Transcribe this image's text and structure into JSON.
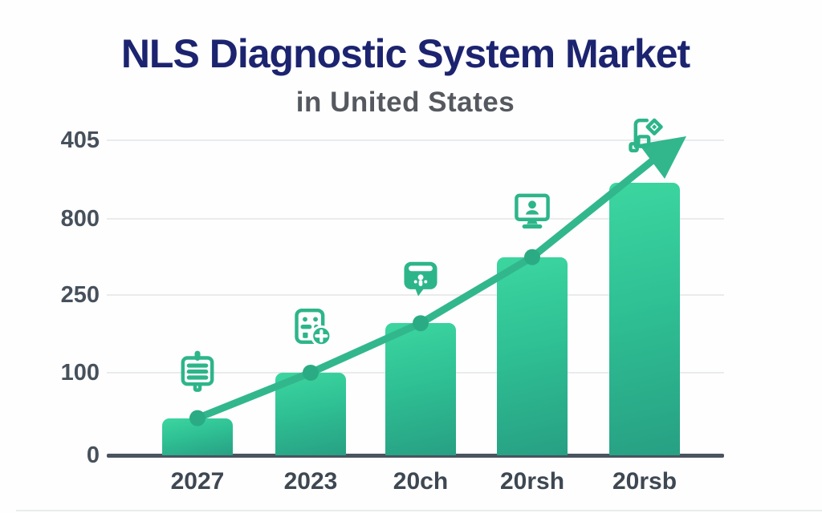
{
  "chart_data": {
    "type": "bar",
    "title": "NLS Diagnostic System Market",
    "subtitle": "in United States",
    "categories": [
      "2027",
      "2023",
      "20ch",
      "20rsh",
      "20rsb"
    ],
    "values": [
      45,
      100,
      160,
      240,
      330
    ],
    "y_tick_labels": [
      "405",
      "800",
      "250",
      "100",
      "0"
    ],
    "ylim": [
      0,
      405
    ],
    "grid": "horizontal",
    "legend": "none",
    "trend_line": {
      "style": "arrow-up-right",
      "through_bar_indices": [
        0,
        1,
        2,
        3
      ],
      "ends_above_last_bar": true
    },
    "bar_icons": [
      "presentation-board-icon",
      "calculator-add-icon",
      "medical-bag-icon",
      "monitor-user-icon",
      "document-badge-icon"
    ],
    "colors": {
      "title": "#1c2470",
      "subtitle": "#55595f",
      "axis_text": "#47515c",
      "x_axis_text": "#3e4852",
      "bar_top": "#3cd6a0",
      "bar_bottom": "#27a083",
      "trend_line": "#32b78d",
      "dot": "#2bab83",
      "icon": "#2db58a",
      "gridline": "#e9ebed",
      "baseline": "#4a545f",
      "background": "#fefefe"
    }
  }
}
